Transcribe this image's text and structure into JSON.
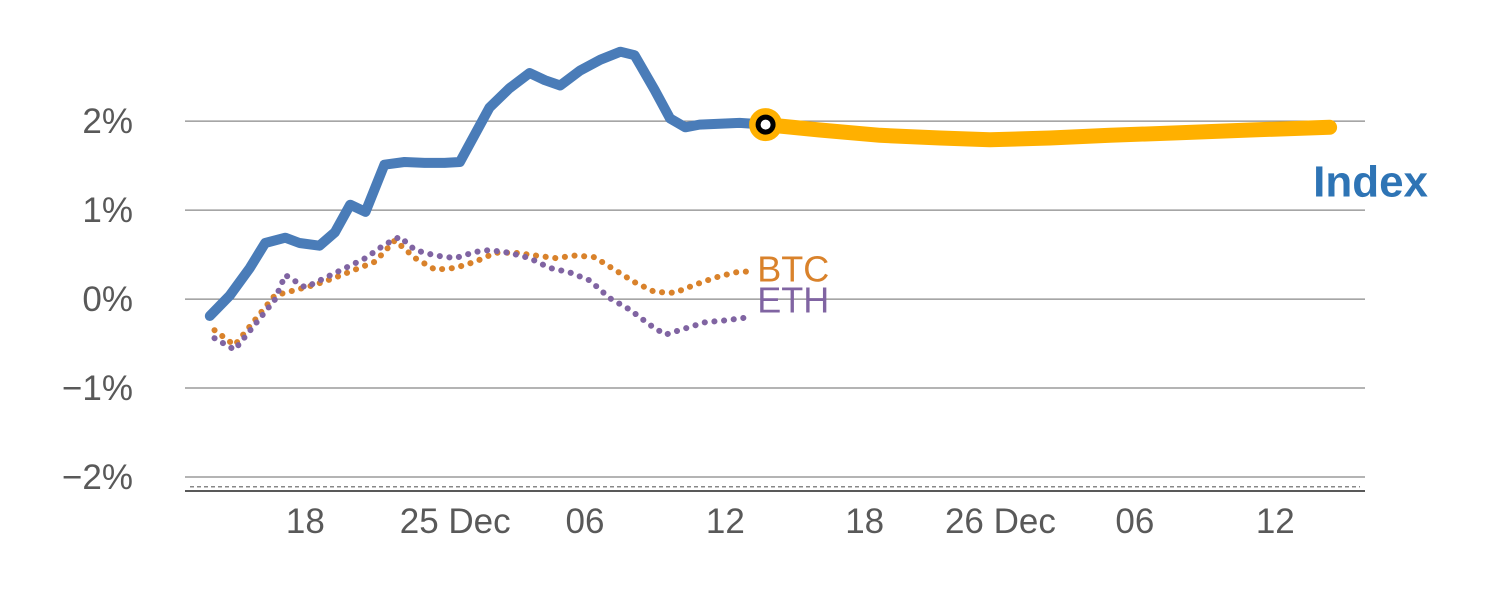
{
  "chart_data": {
    "type": "line",
    "title": "",
    "xlabel": "",
    "ylabel": "",
    "ylim": [
      -2.157,
      2.9
    ],
    "xlim_pct": [
      0,
      100
    ],
    "grid": "horizontal",
    "legend_position": "inline-labels",
    "yticks": [
      {
        "value": 2,
        "label": "2%"
      },
      {
        "value": 1,
        "label": "1%"
      },
      {
        "value": 0,
        "label": "0%"
      },
      {
        "value": -1,
        "label": "−1%"
      },
      {
        "value": -2,
        "label": "−2%"
      }
    ],
    "xticks": [
      {
        "pos": 10.2,
        "label": "18"
      },
      {
        "pos": 22.9,
        "label": "25 Dec"
      },
      {
        "pos": 33.9,
        "label": "06"
      },
      {
        "pos": 45.8,
        "label": "12"
      },
      {
        "pos": 57.6,
        "label": "18"
      },
      {
        "pos": 69.1,
        "label": "26 Dec"
      },
      {
        "pos": 80.5,
        "label": "06"
      },
      {
        "pos": 92.4,
        "label": "12"
      }
    ],
    "baseline_dash_y": -2.11,
    "series": [
      {
        "name": "BTC",
        "color": "#d9822b",
        "style": "dotted",
        "width": 6,
        "points": [
          [
            2.5,
            -0.35
          ],
          [
            4.2,
            -0.52
          ],
          [
            5.9,
            -0.24
          ],
          [
            7.6,
            0.04
          ],
          [
            9.3,
            0.1
          ],
          [
            11.0,
            0.16
          ],
          [
            12.7,
            0.24
          ],
          [
            14.4,
            0.33
          ],
          [
            16.1,
            0.42
          ],
          [
            17.8,
            0.66
          ],
          [
            19.5,
            0.46
          ],
          [
            21.2,
            0.33
          ],
          [
            22.9,
            0.35
          ],
          [
            24.6,
            0.42
          ],
          [
            26.3,
            0.52
          ],
          [
            28.0,
            0.52
          ],
          [
            29.7,
            0.49
          ],
          [
            31.4,
            0.46
          ],
          [
            33.1,
            0.49
          ],
          [
            34.7,
            0.47
          ],
          [
            36.4,
            0.33
          ],
          [
            38.1,
            0.19
          ],
          [
            39.8,
            0.08
          ],
          [
            41.5,
            0.07
          ],
          [
            43.2,
            0.16
          ],
          [
            44.9,
            0.24
          ],
          [
            46.6,
            0.3
          ],
          [
            47.7,
            0.31
          ]
        ]
      },
      {
        "name": "ETH",
        "color": "#8064a2",
        "style": "dotted",
        "width": 6,
        "points": [
          [
            2.5,
            -0.44
          ],
          [
            4.2,
            -0.57
          ],
          [
            5.9,
            -0.29
          ],
          [
            7.6,
            -0.01
          ],
          [
            8.5,
            0.27
          ],
          [
            10.2,
            0.13
          ],
          [
            11.9,
            0.24
          ],
          [
            13.6,
            0.35
          ],
          [
            15.3,
            0.46
          ],
          [
            16.9,
            0.61
          ],
          [
            18.2,
            0.7
          ],
          [
            19.5,
            0.55
          ],
          [
            21.2,
            0.49
          ],
          [
            22.9,
            0.46
          ],
          [
            24.6,
            0.53
          ],
          [
            25.8,
            0.55
          ],
          [
            27.5,
            0.52
          ],
          [
            29.2,
            0.46
          ],
          [
            30.9,
            0.35
          ],
          [
            32.6,
            0.3
          ],
          [
            34.3,
            0.21
          ],
          [
            36.0,
            0.01
          ],
          [
            37.7,
            -0.12
          ],
          [
            39.4,
            -0.29
          ],
          [
            40.7,
            -0.4
          ],
          [
            42.4,
            -0.33
          ],
          [
            44.1,
            -0.26
          ],
          [
            45.8,
            -0.24
          ],
          [
            47.5,
            -0.21
          ]
        ]
      },
      {
        "name": "Index history",
        "color": "#4a7cb8",
        "style": "solid",
        "width": 10,
        "points": [
          [
            2.1,
            -0.19
          ],
          [
            3.8,
            0.04
          ],
          [
            5.5,
            0.35
          ],
          [
            6.8,
            0.63
          ],
          [
            8.5,
            0.69
          ],
          [
            9.7,
            0.63
          ],
          [
            11.4,
            0.6
          ],
          [
            12.7,
            0.75
          ],
          [
            14.0,
            1.06
          ],
          [
            15.3,
            0.98
          ],
          [
            16.9,
            1.51
          ],
          [
            18.6,
            1.54
          ],
          [
            20.3,
            1.53
          ],
          [
            22.0,
            1.53
          ],
          [
            23.3,
            1.54
          ],
          [
            25.8,
            2.15
          ],
          [
            27.5,
            2.37
          ],
          [
            29.2,
            2.54
          ],
          [
            30.5,
            2.46
          ],
          [
            31.8,
            2.4
          ],
          [
            33.5,
            2.57
          ],
          [
            35.2,
            2.69
          ],
          [
            36.9,
            2.78
          ],
          [
            38.1,
            2.74
          ],
          [
            39.8,
            2.35
          ],
          [
            41.1,
            2.03
          ],
          [
            42.4,
            1.93
          ],
          [
            43.6,
            1.96
          ],
          [
            45.3,
            1.97
          ],
          [
            47.0,
            1.98
          ],
          [
            49.2,
            1.96
          ]
        ]
      },
      {
        "name": "Index forecast",
        "color": "#ffb000",
        "style": "solid",
        "width": 15,
        "points": [
          [
            49.2,
            1.96
          ],
          [
            53.8,
            1.9
          ],
          [
            58.9,
            1.84
          ],
          [
            64.0,
            1.81
          ],
          [
            68.2,
            1.79
          ],
          [
            73.3,
            1.81
          ],
          [
            78.4,
            1.84
          ],
          [
            84.3,
            1.87
          ],
          [
            90.3,
            1.9
          ],
          [
            97.0,
            1.93
          ]
        ]
      }
    ],
    "marker": {
      "x": 49.2,
      "y": 1.96,
      "ring_color": "#ffb000",
      "inner_color": "#000000",
      "fill": "#ffffff"
    },
    "labels": [
      {
        "text": "Index",
        "x": 95.6,
        "y": 1.15,
        "color": "#2e74b5",
        "size": 44,
        "weight": "bold",
        "anchor": "start"
      },
      {
        "text": "BTC",
        "x": 48.5,
        "y": 0.2,
        "color": "#d9822b",
        "size": 36,
        "weight": "normal",
        "anchor": "start"
      },
      {
        "text": "ETH",
        "x": 48.5,
        "y": -0.15,
        "color": "#8064a2",
        "size": 36,
        "weight": "normal",
        "anchor": "start"
      }
    ]
  },
  "colors": {
    "background": "#ffffff",
    "grid": "#888888",
    "axis": "#595959",
    "tick_text": "#595959"
  }
}
